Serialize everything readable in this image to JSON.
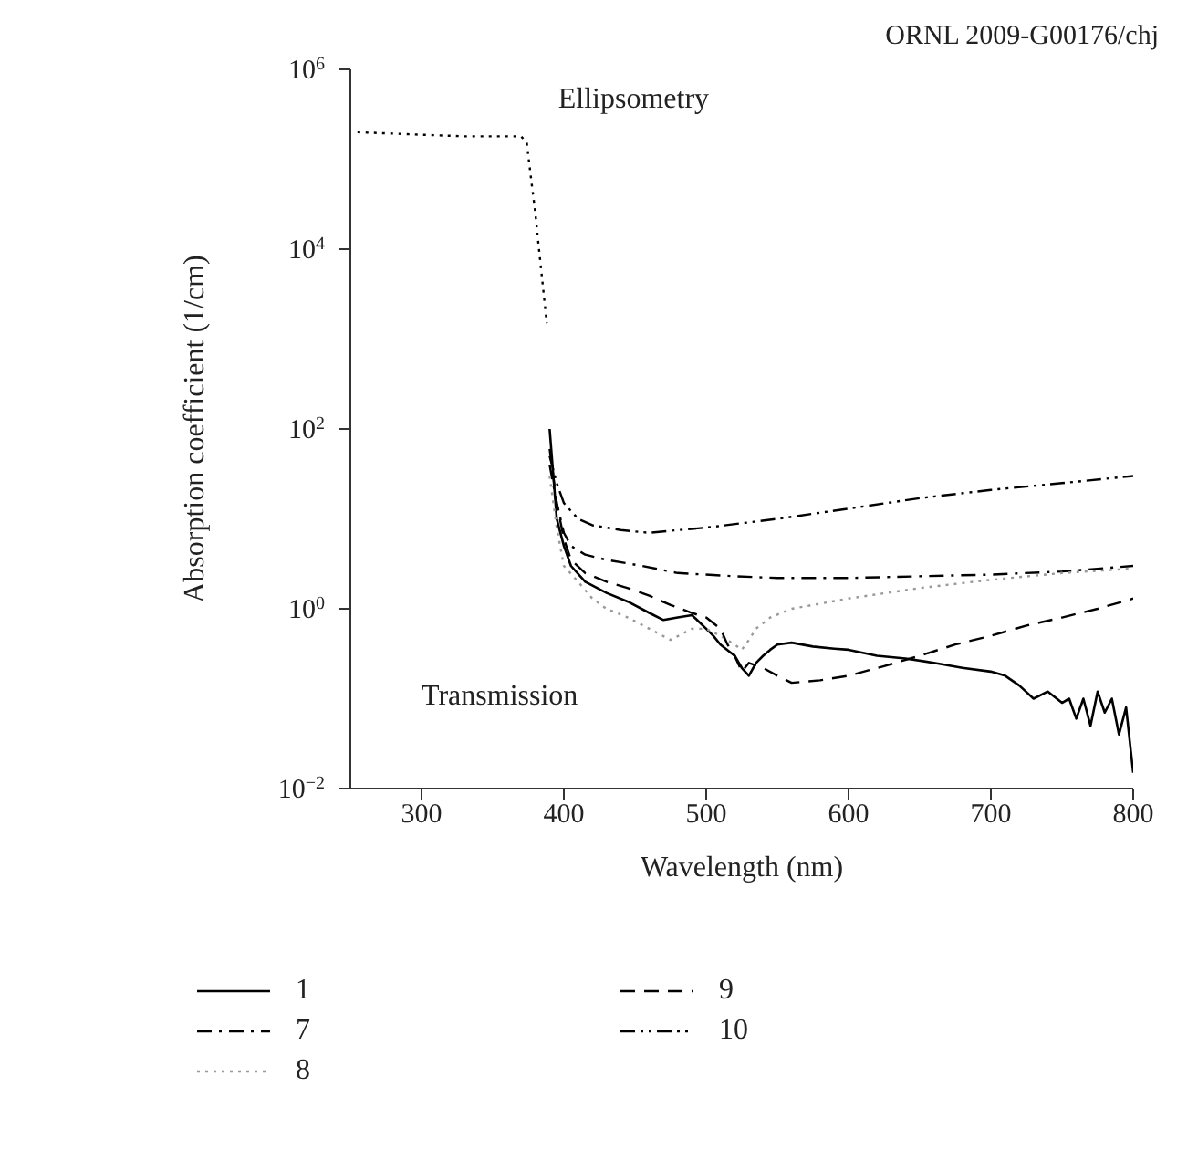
{
  "chart_data": {
    "type": "line",
    "xlabel": "Wavelength (nm)",
    "ylabel": "Absorption coefficient (1/cm)",
    "log": "y",
    "legend": "bottom",
    "marker": "none",
    "xlim": [
      250,
      800
    ],
    "xticks": [
      300,
      400,
      500,
      600,
      700,
      800
    ],
    "ylim": [
      0.01,
      1000000
    ],
    "yticks": [
      {
        "value": 0.01,
        "label": "10$^{−2}$"
      },
      {
        "value": 1,
        "label": "10$^{0}$"
      },
      {
        "value": 100,
        "label": "10$^{2}$"
      },
      {
        "value": 10000,
        "label": "10$^{4}$"
      },
      {
        "value": 1000000,
        "label": "10$^{6}$"
      }
    ],
    "annotations": [
      "ORNL 2009-G00176/chj",
      "Ellipsometry",
      "Transmission"
    ],
    "series": [
      {
        "name": "1",
        "color": "#000000",
        "line_style": "solid",
        "x": [
          390,
          395,
          400,
          405,
          415,
          430,
          445,
          460,
          470,
          480,
          490,
          500,
          505,
          510,
          520,
          525,
          530,
          535,
          540,
          545,
          550,
          560,
          575,
          590,
          600,
          620,
          640,
          660,
          680,
          700,
          710,
          720,
          730,
          740,
          750,
          755,
          760,
          765,
          770,
          775,
          780,
          785,
          790,
          795,
          800
        ],
        "values": [
          100,
          10,
          5,
          3,
          2,
          1.5,
          1.2,
          0.9,
          0.75,
          0.8,
          0.85,
          0.6,
          0.5,
          0.4,
          0.3,
          0.22,
          0.18,
          0.25,
          0.3,
          0.35,
          0.4,
          0.42,
          0.38,
          0.36,
          0.35,
          0.3,
          0.28,
          0.25,
          0.22,
          0.2,
          0.18,
          0.14,
          0.1,
          0.12,
          0.09,
          0.1,
          0.06,
          0.1,
          0.05,
          0.12,
          0.07,
          0.1,
          0.04,
          0.08,
          0.015
        ]
      },
      {
        "name": "7",
        "color": "#000000",
        "line_style": "dashdot",
        "x": [
          390,
          395,
          400,
          405,
          415,
          430,
          455,
          480,
          520,
          550,
          600,
          650,
          700,
          750,
          800
        ],
        "values": [
          40,
          15,
          7,
          5,
          4,
          3.5,
          3,
          2.5,
          2.3,
          2.2,
          2.2,
          2.3,
          2.4,
          2.6,
          3
        ]
      },
      {
        "name": "8",
        "color": "#999999",
        "line_style": "dotted",
        "x": [
          390,
          395,
          400,
          410,
          420,
          430,
          445,
          460,
          475,
          490,
          500,
          510,
          520,
          525,
          530,
          535,
          545,
          560,
          600,
          650,
          700,
          750,
          800
        ],
        "values": [
          30,
          8,
          3,
          2,
          1.3,
          1,
          0.8,
          0.6,
          0.45,
          0.6,
          0.6,
          0.5,
          0.4,
          0.35,
          0.45,
          0.6,
          0.8,
          1,
          1.3,
          1.7,
          2.1,
          2.5,
          2.8
        ]
      },
      {
        "name": "9",
        "color": "#000000",
        "line_style": "dashed",
        "x": [
          390,
          395,
          400,
          405,
          415,
          430,
          445,
          460,
          475,
          490,
          500,
          510,
          515,
          520,
          525,
          530,
          540,
          550,
          560,
          580,
          600,
          625,
          650,
          675,
          700,
          725,
          750,
          775,
          800
        ],
        "values": [
          60,
          15,
          6,
          3.5,
          2.5,
          2,
          1.7,
          1.4,
          1.1,
          0.9,
          0.8,
          0.6,
          0.4,
          0.3,
          0.2,
          0.25,
          0.22,
          0.18,
          0.15,
          0.16,
          0.18,
          0.23,
          0.3,
          0.4,
          0.5,
          0.65,
          0.8,
          1,
          1.3
        ]
      },
      {
        "name": "10",
        "color": "#000000",
        "line_style": "dashdotdot",
        "x": [
          390,
          395,
          400,
          410,
          420,
          440,
          460,
          480,
          500,
          550,
          600,
          650,
          700,
          750,
          800
        ],
        "values": [
          50,
          25,
          15,
          10,
          8.5,
          7.5,
          7,
          7.5,
          8,
          10,
          13,
          17,
          21,
          25,
          30
        ]
      },
      {
        "color": "#000000",
        "line_style": "dotted",
        "x": [
          255,
          290,
          330,
          370,
          374,
          377,
          380,
          382,
          384,
          386,
          388
        ],
        "values": [
          200000,
          190000,
          180000,
          180000,
          150000,
          60000,
          25000,
          12000,
          6000,
          3000,
          1500
        ]
      }
    ]
  }
}
